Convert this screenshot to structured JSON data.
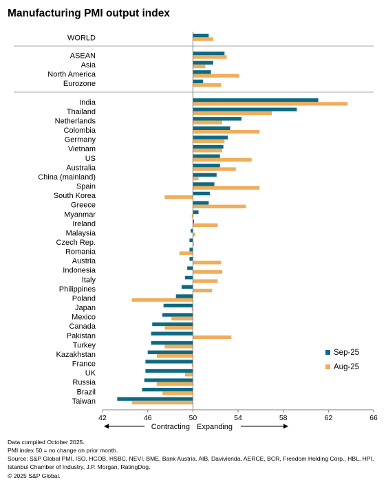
{
  "chart_data": {
    "type": "bar",
    "orientation": "horizontal",
    "title": "Manufacturing PMI output index",
    "xlabel": "",
    "ylabel": "",
    "xlim": [
      42,
      66
    ],
    "xticks": [
      42,
      46,
      50,
      54,
      58,
      62,
      66
    ],
    "baseline": 50,
    "grid": false,
    "legend": "right",
    "groups": [
      [
        "WORLD"
      ],
      [
        "ASEAN",
        "Asia",
        "North America",
        "Eurozone"
      ],
      [
        "India",
        "Thailand",
        "Netherlands",
        "Colombia",
        "Germany",
        "Vietnam",
        "US",
        "Australia",
        "China (mainland)",
        "Spain",
        "South Korea",
        "Greece",
        "Myanmar",
        "Ireland",
        "Malaysia",
        "Czech Rep.",
        "Romania",
        "Austria",
        "Indonesia",
        "Italy",
        "Philippines",
        "Poland",
        "Japan",
        "Mexico",
        "Canada",
        "Pakistan",
        "Turkey",
        "Kazakhstan",
        "France",
        "UK",
        "Russia",
        "Brazil",
        "Taiwan"
      ]
    ],
    "categories": [
      "WORLD",
      "ASEAN",
      "Asia",
      "North America",
      "Eurozone",
      "India",
      "Thailand",
      "Netherlands",
      "Colombia",
      "Germany",
      "Vietnam",
      "US",
      "Australia",
      "China (mainland)",
      "Spain",
      "South Korea",
      "Greece",
      "Myanmar",
      "Ireland",
      "Malaysia",
      "Czech Rep.",
      "Romania",
      "Austria",
      "Indonesia",
      "Italy",
      "Philippines",
      "Poland",
      "Japan",
      "Mexico",
      "Canada",
      "Pakistan",
      "Turkey",
      "Kazakhstan",
      "France",
      "UK",
      "Russia",
      "Brazil",
      "Taiwan"
    ],
    "series": [
      {
        "name": "Sep-25",
        "color": "#0e6a82",
        "values": [
          51.4,
          52.8,
          51.8,
          51.6,
          50.9,
          61.1,
          59.2,
          54.3,
          53.3,
          53.1,
          52.7,
          52.4,
          52.4,
          52.1,
          51.9,
          51.5,
          51.4,
          50.5,
          50.1,
          49.8,
          49.7,
          49.7,
          49.7,
          49.5,
          49.3,
          49.0,
          48.5,
          47.4,
          47.3,
          46.4,
          46.3,
          46.3,
          46.0,
          45.8,
          45.8,
          45.7,
          45.5,
          43.3
        ]
      },
      {
        "name": "Aug-25",
        "color": "#f0ad5a",
        "values": [
          51.8,
          53.0,
          51.1,
          54.1,
          52.5,
          63.7,
          57.0,
          52.6,
          55.9,
          52.8,
          52.6,
          55.2,
          53.8,
          50.5,
          55.9,
          47.5,
          54.7,
          49.9,
          52.2,
          50.2,
          50.1,
          48.8,
          52.5,
          52.6,
          52.2,
          51.7,
          44.6,
          49.9,
          48.1,
          47.5,
          53.4,
          47.5,
          46.8,
          49.9,
          49.3,
          46.8,
          47.3,
          44.6
        ]
      }
    ],
    "annotations": {
      "left": "Contracting",
      "right": "Expanding"
    }
  },
  "footer": {
    "line1": "Data compiled October 2025.",
    "line2": "PMI index 50 = no change on prior month.",
    "line3": "Source: S&P Global PMI, ISO, HCOB, HSBC, NEVI, BME, Bank Austria, AIB, Davivienda, AERCE, BCR, Freedom Holding Corp., HBL, HPI, Istanbul Chamber of Industry, J.P. Morgan, RatingDog.",
    "line4": "© 2025 S&P Global."
  },
  "colors": {
    "sep": "#0e6a82",
    "aug": "#f0ad5a",
    "divider": "#a6a6a6"
  }
}
